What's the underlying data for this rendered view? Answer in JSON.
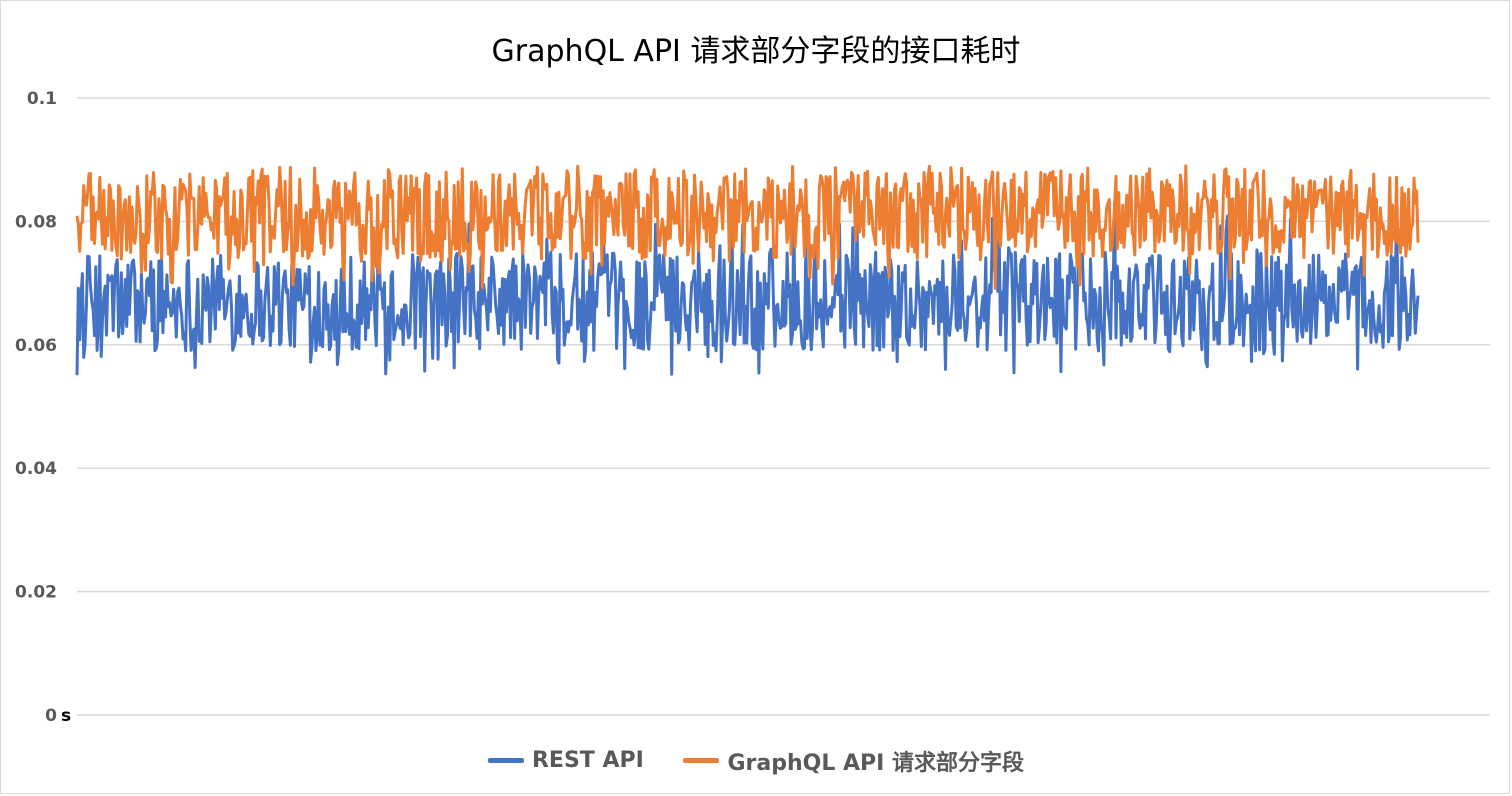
{
  "chart_data": {
    "type": "line",
    "title": "GraphQL API 请求部分字段的接口耗时",
    "ylabel": "",
    "xlabel": "",
    "y_unit": "s",
    "ylim": [
      0,
      0.1
    ],
    "yticks": [
      "0.1",
      "0.08",
      "0.06",
      "0.04",
      "0.02",
      "0"
    ],
    "y_tick_values": [
      0.1,
      0.08,
      0.06,
      0.04,
      0.02,
      0
    ],
    "grid": true,
    "legend_position": "bottom",
    "series": [
      {
        "name": "REST API",
        "color": "#4472C4",
        "n_points": 1000,
        "stats": {
          "typical_min": 0.059,
          "typical_max": 0.075,
          "min": 0.055,
          "max": 0.083,
          "mean": 0.066
        }
      },
      {
        "name": "GraphQL API 请求部分字段",
        "color": "#ED7D31",
        "n_points": 1000,
        "stats": {
          "typical_min": 0.074,
          "typical_max": 0.088,
          "min": 0.069,
          "max": 0.089,
          "mean": 0.081
        }
      }
    ]
  }
}
